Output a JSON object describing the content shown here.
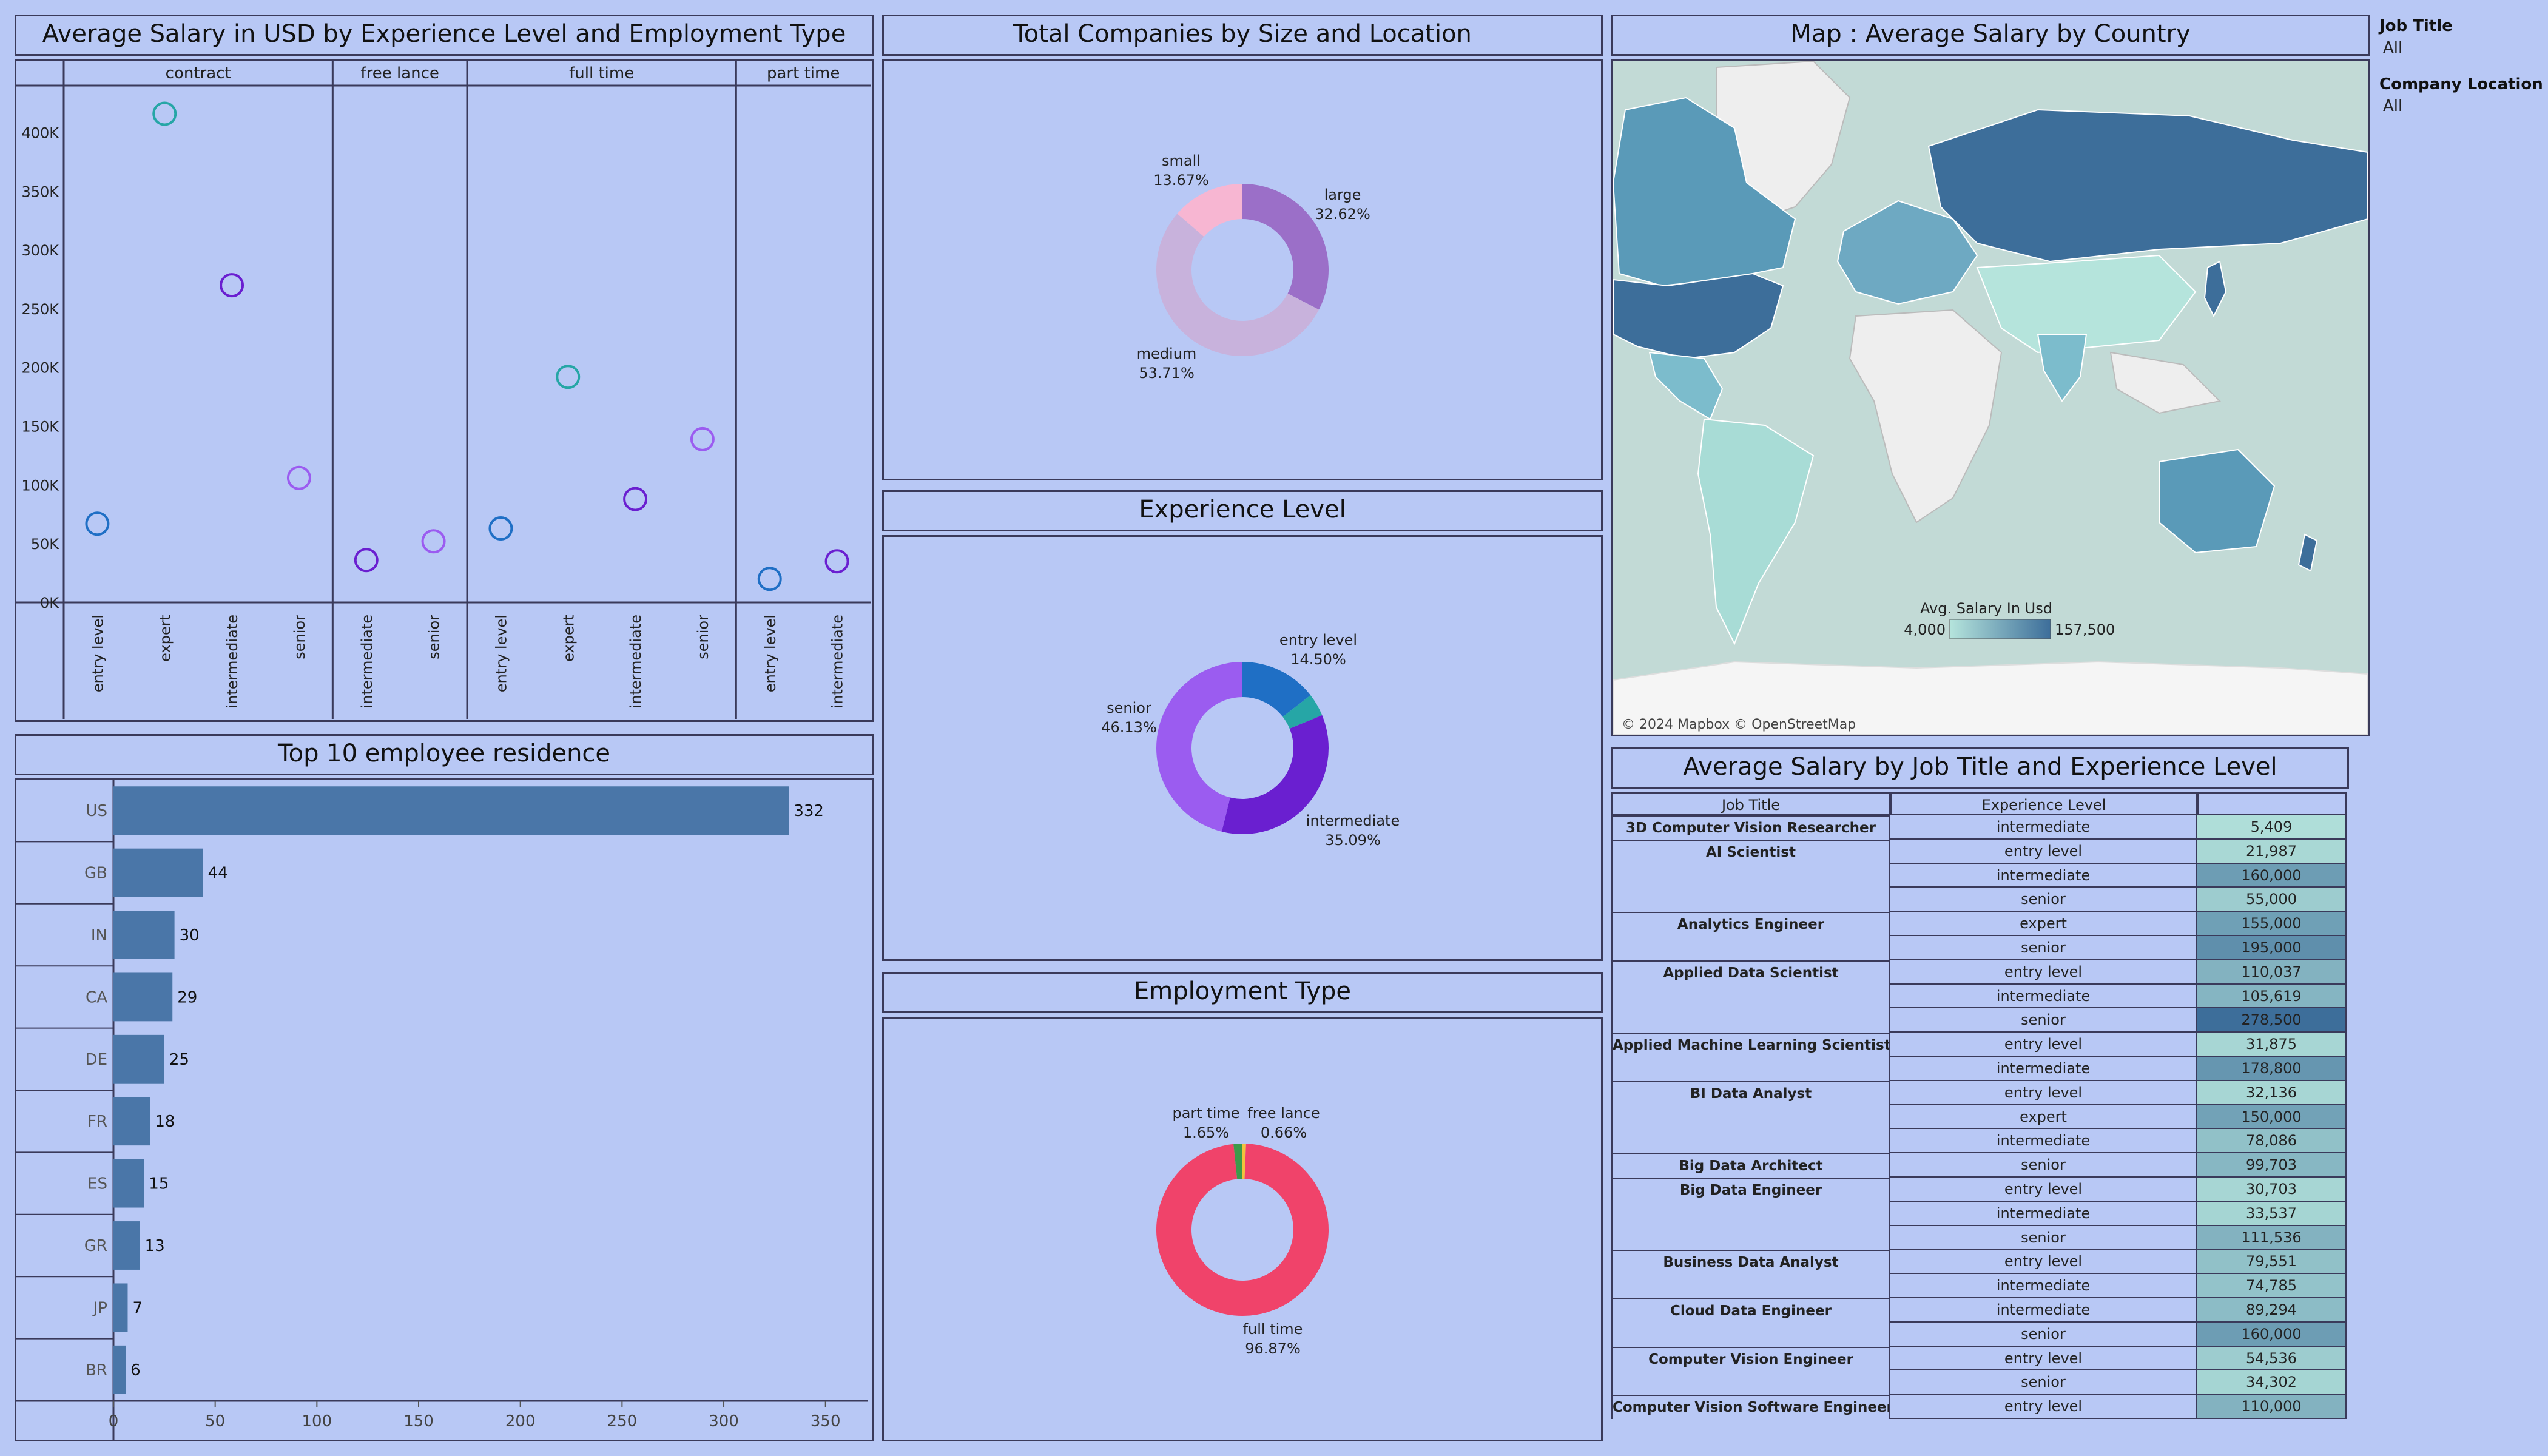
{
  "titles": {
    "scatter": "Average Salary in USD by Experience Level and Employment Type",
    "companies": "Total Companies by Size and Location",
    "map": "Map : Average Salary by Country",
    "residence": "Top 10 employee residence",
    "experience": "Experience Level",
    "employment": "Employment Type",
    "jobtable": "Average Salary by Job Title and Experience Level"
  },
  "filters": {
    "job_title_label": "Job Title",
    "job_title_value": "All",
    "company_location_label": "Company Location",
    "company_location_value": "All"
  },
  "map": {
    "legend_title": "Avg. Salary In Usd",
    "legend_min": "4,000",
    "legend_max": "157,500",
    "attribution": "© 2024 Mapbox © OpenStreetMap",
    "color_low": "#b5e4dc",
    "color_high": "#3d6e9a"
  },
  "chart_data": [
    {
      "type": "scatter",
      "name": "salary_by_exp_emp",
      "y_ticks": [
        "0K",
        "50K",
        "100K",
        "150K",
        "200K",
        "250K",
        "300K",
        "350K",
        "400K"
      ],
      "ylim": [
        0,
        440000
      ],
      "groups": [
        {
          "label": "contract",
          "points": [
            {
              "x": "entry level",
              "y": 67000,
              "color": "#1f6fc5"
            },
            {
              "x": "expert",
              "y": 416000,
              "color": "#26a6a6"
            },
            {
              "x": "intermediate",
              "y": 270000,
              "color": "#6a1fd0"
            },
            {
              "x": "senior",
              "y": 106000,
              "color": "#9b5cf0"
            }
          ]
        },
        {
          "label": "free lance",
          "points": [
            {
              "x": "intermediate",
              "y": 36000,
              "color": "#6a1fd0"
            },
            {
              "x": "senior",
              "y": 52000,
              "color": "#9b5cf0"
            }
          ]
        },
        {
          "label": "full time",
          "points": [
            {
              "x": "entry level",
              "y": 63000,
              "color": "#1f6fc5"
            },
            {
              "x": "expert",
              "y": 192000,
              "color": "#26a6a6"
            },
            {
              "x": "intermediate",
              "y": 88000,
              "color": "#6a1fd0"
            },
            {
              "x": "senior",
              "y": 139000,
              "color": "#9b5cf0"
            }
          ]
        },
        {
          "label": "part time",
          "points": [
            {
              "x": "entry level",
              "y": 20000,
              "color": "#1f6fc5"
            },
            {
              "x": "intermediate",
              "y": 35000,
              "color": "#6a1fd0"
            }
          ]
        }
      ]
    },
    {
      "type": "bar",
      "name": "top10_residence",
      "categories": [
        "US",
        "GB",
        "IN",
        "CA",
        "DE",
        "FR",
        "ES",
        "GR",
        "JP",
        "BR"
      ],
      "values": [
        332,
        44,
        30,
        29,
        25,
        18,
        15,
        13,
        7,
        6
      ],
      "x_ticks": [
        0,
        50,
        100,
        150,
        200,
        250,
        300,
        350
      ],
      "xlim": [
        0,
        365
      ],
      "color": "#4a76a8"
    },
    {
      "type": "pie",
      "name": "company_size",
      "slices": [
        {
          "label": "large",
          "pct": "32.62%",
          "value": 32.62,
          "color": "#9b6fc8"
        },
        {
          "label": "medium",
          "pct": "53.71%",
          "value": 53.71,
          "color": "#c8b2dc"
        },
        {
          "label": "small",
          "pct": "13.67%",
          "value": 13.67,
          "color": "#f7b6d2"
        }
      ]
    },
    {
      "type": "pie",
      "name": "experience_level",
      "slices": [
        {
          "label": "entry level",
          "pct": "14.50%",
          "value": 14.5,
          "color": "#1f6fc5"
        },
        {
          "label": "expert",
          "pct": "",
          "value": 4.28,
          "color": "#26a6a6"
        },
        {
          "label": "intermediate",
          "pct": "35.09%",
          "value": 35.09,
          "color": "#6a1fd0"
        },
        {
          "label": "senior",
          "pct": "46.13%",
          "value": 46.13,
          "color": "#9b5cf0"
        }
      ]
    },
    {
      "type": "pie",
      "name": "employment_type",
      "slices": [
        {
          "label": "free lance",
          "pct": "0.66%",
          "value": 0.66,
          "color": "#f2c33c"
        },
        {
          "label": "full time",
          "pct": "96.87%",
          "value": 96.87,
          "color": "#f0436a"
        },
        {
          "label": "part time",
          "pct": "1.65%",
          "value": 1.65,
          "color": "#3c9a4a"
        }
      ]
    },
    {
      "type": "table",
      "name": "job_title_salary",
      "columns": [
        "Job Title",
        "Experience Level",
        ""
      ],
      "rows": [
        {
          "title": "3D Computer Vision Researcher",
          "level": "intermediate",
          "value": "5,409",
          "shade": 0.05
        },
        {
          "title": "AI Scientist",
          "level": "entry level",
          "value": "21,987",
          "shade": 0.1
        },
        {
          "title": "",
          "level": "intermediate",
          "value": "160,000",
          "shade": 0.6
        },
        {
          "title": "",
          "level": "senior",
          "value": "55,000",
          "shade": 0.2
        },
        {
          "title": "Analytics Engineer",
          "level": "expert",
          "value": "155,000",
          "shade": 0.58
        },
        {
          "title": "",
          "level": "senior",
          "value": "195,000",
          "shade": 0.72
        },
        {
          "title": "Applied Data Scientist",
          "level": "entry level",
          "value": "110,037",
          "shade": 0.42
        },
        {
          "title": "",
          "level": "intermediate",
          "value": "105,619",
          "shade": 0.4
        },
        {
          "title": "",
          "level": "senior",
          "value": "278,500",
          "shade": 1.0
        },
        {
          "title": "Applied Machine Learning Scientist",
          "level": "entry level",
          "value": "31,875",
          "shade": 0.12
        },
        {
          "title": "",
          "level": "intermediate",
          "value": "178,800",
          "shade": 0.66
        },
        {
          "title": "BI Data Analyst",
          "level": "entry level",
          "value": "32,136",
          "shade": 0.12
        },
        {
          "title": "",
          "level": "expert",
          "value": "150,000",
          "shade": 0.56
        },
        {
          "title": "",
          "level": "intermediate",
          "value": "78,086",
          "shade": 0.3
        },
        {
          "title": "Big Data Architect",
          "level": "senior",
          "value": "99,703",
          "shade": 0.38
        },
        {
          "title": "Big Data Engineer",
          "level": "entry level",
          "value": "30,703",
          "shade": 0.12
        },
        {
          "title": "",
          "level": "intermediate",
          "value": "33,537",
          "shade": 0.13
        },
        {
          "title": "",
          "level": "senior",
          "value": "111,536",
          "shade": 0.42
        },
        {
          "title": "Business Data Analyst",
          "level": "entry level",
          "value": "79,551",
          "shade": 0.3
        },
        {
          "title": "",
          "level": "intermediate",
          "value": "74,785",
          "shade": 0.28
        },
        {
          "title": "Cloud Data Engineer",
          "level": "intermediate",
          "value": "89,294",
          "shade": 0.34
        },
        {
          "title": "",
          "level": "senior",
          "value": "160,000",
          "shade": 0.6
        },
        {
          "title": "Computer Vision Engineer",
          "level": "entry level",
          "value": "54,536",
          "shade": 0.2
        },
        {
          "title": "",
          "level": "senior",
          "value": "34,302",
          "shade": 0.13
        },
        {
          "title": "Computer Vision Software Engineer",
          "level": "entry level",
          "value": "110,000",
          "shade": 0.42
        }
      ]
    }
  ]
}
